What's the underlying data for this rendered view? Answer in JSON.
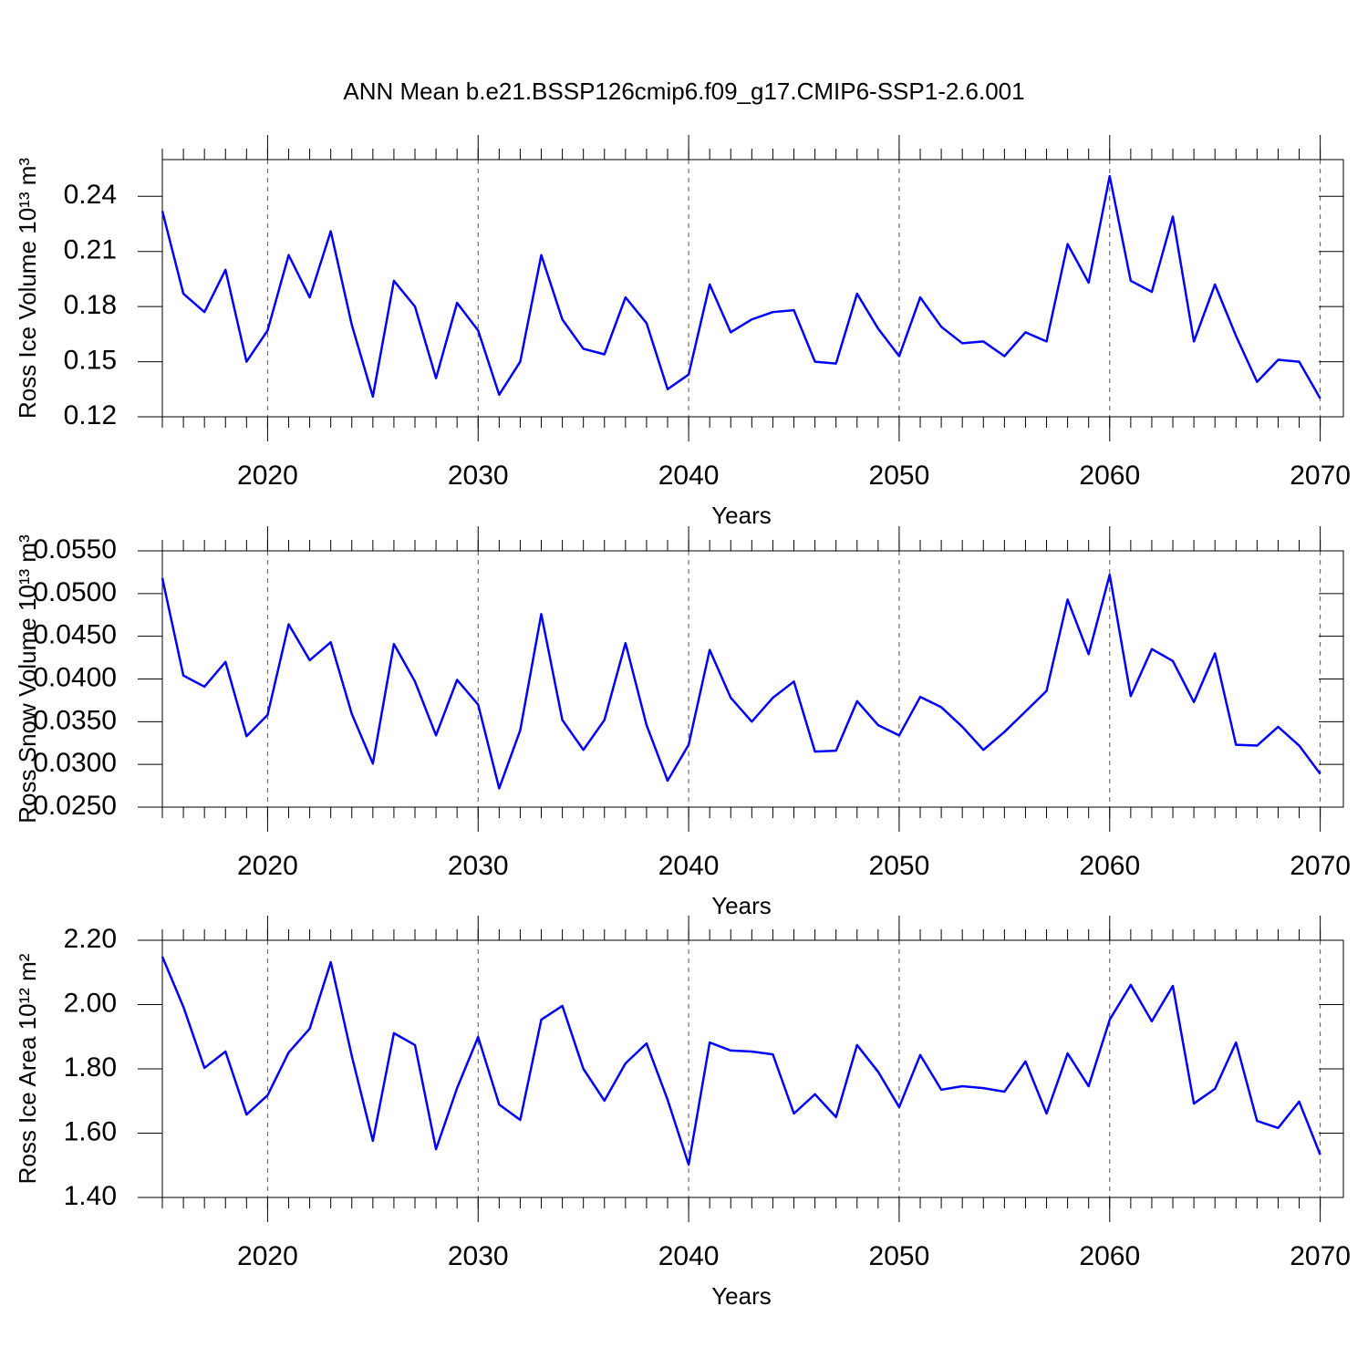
{
  "title": "ANN Mean b.e21.BSSP126cmip6.f09_g17.CMIP6-SSP1-2.6.001",
  "chart_data": [
    {
      "type": "line",
      "ylabel": "Ross Ice Volume 10¹³ m³",
      "xlabel": "Years",
      "x": [
        2015,
        2016,
        2017,
        2018,
        2019,
        2020,
        2021,
        2022,
        2023,
        2024,
        2025,
        2026,
        2027,
        2028,
        2029,
        2030,
        2031,
        2032,
        2033,
        2034,
        2035,
        2036,
        2037,
        2038,
        2039,
        2040,
        2041,
        2042,
        2043,
        2044,
        2045,
        2046,
        2047,
        2048,
        2049,
        2050,
        2051,
        2052,
        2053,
        2054,
        2055,
        2056,
        2057,
        2058,
        2059,
        2060,
        2061,
        2062,
        2063,
        2064,
        2065,
        2066,
        2067,
        2068,
        2069,
        2070
      ],
      "series": [
        {
          "color": "#0000ff",
          "values": [
            0.232,
            0.187,
            0.177,
            0.2,
            0.15,
            0.167,
            0.208,
            0.185,
            0.221,
            0.17,
            0.131,
            0.194,
            0.18,
            0.141,
            0.182,
            0.167,
            0.132,
            0.15,
            0.208,
            0.173,
            0.157,
            0.154,
            0.185,
            0.171,
            0.135,
            0.143,
            0.192,
            0.166,
            0.173,
            0.177,
            0.178,
            0.15,
            0.149,
            0.187,
            0.168,
            0.153,
            0.185,
            0.169,
            0.16,
            0.161,
            0.153,
            0.166,
            0.161,
            0.214,
            0.193,
            0.251,
            0.194,
            0.188,
            0.229,
            0.161,
            0.192,
            0.164,
            0.139,
            0.151,
            0.15,
            0.13
          ]
        }
      ],
      "xlim": [
        2015,
        2071.1
      ],
      "xticks": [
        2020,
        2030,
        2040,
        2050,
        2060,
        2070
      ],
      "ylim": [
        0.12,
        0.26
      ],
      "yticks": [
        0.12,
        0.15,
        0.18,
        0.21,
        0.24
      ],
      "grid": true
    },
    {
      "type": "line",
      "ylabel": "Ross Snow Volume 10¹³ m³",
      "xlabel": "Years",
      "x": [
        2015,
        2016,
        2017,
        2018,
        2019,
        2020,
        2021,
        2022,
        2023,
        2024,
        2025,
        2026,
        2027,
        2028,
        2029,
        2030,
        2031,
        2032,
        2033,
        2034,
        2035,
        2036,
        2037,
        2038,
        2039,
        2040,
        2041,
        2042,
        2043,
        2044,
        2045,
        2046,
        2047,
        2048,
        2049,
        2050,
        2051,
        2052,
        2053,
        2054,
        2055,
        2056,
        2057,
        2058,
        2059,
        2060,
        2061,
        2062,
        2063,
        2064,
        2065,
        2066,
        2067,
        2068,
        2069,
        2070
      ],
      "series": [
        {
          "color": "#0000ff",
          "values": [
            0.0518,
            0.0404,
            0.0391,
            0.042,
            0.0333,
            0.0358,
            0.0464,
            0.0422,
            0.0443,
            0.0359,
            0.0301,
            0.0441,
            0.0397,
            0.0334,
            0.0399,
            0.037,
            0.0272,
            0.034,
            0.0476,
            0.0352,
            0.0317,
            0.0352,
            0.0442,
            0.0346,
            0.0281,
            0.0323,
            0.0434,
            0.0378,
            0.035,
            0.0378,
            0.0397,
            0.0315,
            0.0316,
            0.0374,
            0.0346,
            0.0334,
            0.0379,
            0.0367,
            0.0344,
            0.0317,
            0.0338,
            0.0362,
            0.0386,
            0.0493,
            0.0429,
            0.0522,
            0.038,
            0.0435,
            0.0421,
            0.0373,
            0.043,
            0.0323,
            0.0322,
            0.0344,
            0.0322,
            0.0289
          ]
        }
      ],
      "xlim": [
        2015,
        2071.1
      ],
      "xticks": [
        2020,
        2030,
        2040,
        2050,
        2060,
        2070
      ],
      "ylim": [
        0.025,
        0.055
      ],
      "yticks": [
        {
          "value": 0.025,
          "label": "0.0250"
        },
        {
          "value": 0.03,
          "label": "0.0300"
        },
        {
          "value": 0.035,
          "label": "0.0350"
        },
        {
          "value": 0.04,
          "label": "0.0400"
        },
        {
          "value": 0.045,
          "label": "0.0450"
        },
        {
          "value": 0.05,
          "label": "0.0500"
        },
        {
          "value": 0.055,
          "label": "0.0550"
        }
      ],
      "grid": true
    },
    {
      "type": "line",
      "ylabel": "Ross Ice Area 10¹² m²",
      "xlabel": "Years",
      "x": [
        2015,
        2016,
        2017,
        2018,
        2019,
        2020,
        2021,
        2022,
        2023,
        2024,
        2025,
        2026,
        2027,
        2028,
        2029,
        2030,
        2031,
        2032,
        2033,
        2034,
        2035,
        2036,
        2037,
        2038,
        2039,
        2040,
        2041,
        2042,
        2043,
        2044,
        2045,
        2046,
        2047,
        2048,
        2049,
        2050,
        2051,
        2052,
        2053,
        2054,
        2055,
        2056,
        2057,
        2058,
        2059,
        2060,
        2061,
        2062,
        2063,
        2064,
        2065,
        2066,
        2067,
        2068,
        2069,
        2070
      ],
      "series": [
        {
          "color": "#0000ff",
          "values": [
            2.149,
            1.993,
            1.803,
            1.854,
            1.658,
            1.718,
            1.851,
            1.925,
            2.132,
            1.84,
            1.576,
            1.911,
            1.874,
            1.55,
            1.74,
            1.899,
            1.689,
            1.641,
            1.953,
            1.996,
            1.8,
            1.701,
            1.817,
            1.879,
            1.704,
            1.502,
            1.882,
            1.857,
            1.854,
            1.845,
            1.661,
            1.721,
            1.65,
            1.874,
            1.791,
            1.681,
            1.843,
            1.735,
            1.746,
            1.74,
            1.729,
            1.823,
            1.661,
            1.848,
            1.746,
            1.953,
            2.061,
            1.948,
            2.058,
            1.692,
            1.738,
            1.882,
            1.638,
            1.616,
            1.698,
            1.533
          ]
        }
      ],
      "xlim": [
        2015,
        2071.1
      ],
      "xticks": [
        2020,
        2030,
        2040,
        2050,
        2060,
        2070
      ],
      "ylim": [
        1.4,
        2.2
      ],
      "yticks": [
        {
          "value": 1.4,
          "label": "1.40"
        },
        {
          "value": 1.6,
          "label": "1.60"
        },
        {
          "value": 1.8,
          "label": "1.80"
        },
        {
          "value": 2.0,
          "label": "2.00"
        },
        {
          "value": 2.2,
          "label": "2.20"
        }
      ],
      "grid": true
    }
  ]
}
